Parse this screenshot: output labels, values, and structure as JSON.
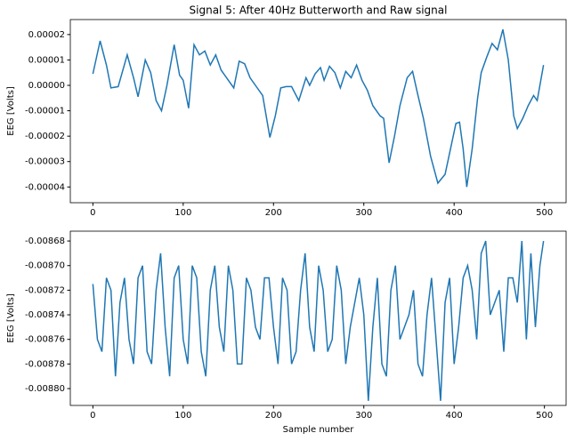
{
  "chart_data": [
    {
      "type": "line",
      "title": "Signal 5: After 40Hz Butterworth and Raw signal",
      "y_label": "EEG [Volts]",
      "color": "#1f77b4",
      "x": [
        0,
        8,
        15,
        20,
        28,
        38,
        45,
        50,
        58,
        64,
        70,
        76,
        82,
        90,
        96,
        100,
        106,
        112,
        118,
        124,
        130,
        136,
        142,
        150,
        156,
        162,
        168,
        174,
        180,
        188,
        196,
        202,
        208,
        214,
        220,
        228,
        236,
        240,
        246,
        252,
        256,
        262,
        268,
        274,
        280,
        286,
        292,
        298,
        304,
        310,
        318,
        322,
        328,
        334,
        340,
        348,
        354,
        360,
        366,
        374,
        382,
        390,
        396,
        402,
        406,
        410,
        414,
        420,
        426,
        430,
        436,
        442,
        448,
        454,
        460,
        466,
        470,
        476,
        482,
        488,
        492,
        496,
        499
      ],
      "values": [
        4.5e-06,
        1.75e-05,
        8e-06,
        -1e-06,
        -5e-07,
        1.2e-05,
        3e-06,
        -4.5e-06,
        1e-05,
        5e-06,
        -6e-06,
        -1e-05,
        0.0,
        1.6e-05,
        4e-06,
        2e-06,
        -9e-06,
        1.6e-05,
        1.2e-05,
        1.35e-05,
        8e-06,
        1.2e-05,
        6e-06,
        2e-06,
        -1e-06,
        9.5e-06,
        8.5e-06,
        3e-06,
        0.0,
        -4e-06,
        -2.05e-05,
        -1.2e-05,
        -1e-06,
        -5e-07,
        -5e-07,
        -6e-06,
        3e-06,
        0.0,
        4.5e-06,
        7e-06,
        2e-06,
        7.5e-06,
        5e-06,
        -1e-06,
        5.5e-06,
        3e-06,
        8e-06,
        2e-06,
        -2e-06,
        -8e-06,
        -1.2e-05,
        -1.3e-05,
        -3.05e-05,
        -2e-05,
        -8e-06,
        3e-06,
        5.5e-06,
        -4e-06,
        -1.3e-05,
        -2.8e-05,
        -3.85e-05,
        -3.5e-05,
        -2.5e-05,
        -1.5e-05,
        -1.45e-05,
        -2.5e-05,
        -4e-05,
        -2.5e-05,
        -5e-06,
        5e-06,
        1.1e-05,
        1.65e-05,
        1.4e-05,
        2.2e-05,
        1e-05,
        -1.2e-05,
        -1.7e-05,
        -1.3e-05,
        -8e-06,
        -4e-06,
        -6e-06,
        2e-06,
        8e-06
      ],
      "xlim": [
        -25,
        524
      ],
      "ylim": [
        -4.62e-05,
        2.59e-05
      ],
      "xticks": [
        0,
        100,
        200,
        300,
        400,
        500
      ],
      "yticks": [
        {
          "value": 2e-05,
          "label": "0.00002"
        },
        {
          "value": 1e-05,
          "label": "0.00001"
        },
        {
          "value": 0,
          "label": "0.00000"
        },
        {
          "value": -1e-05,
          "label": "-0.00001"
        },
        {
          "value": -2e-05,
          "label": "-0.00002"
        },
        {
          "value": -3e-05,
          "label": "-0.00003"
        },
        {
          "value": -4e-05,
          "label": "-0.00004"
        }
      ]
    },
    {
      "type": "line",
      "x_label": "Sample number",
      "y_label": "EEG [Volts]",
      "color": "#1f77b4",
      "x": [
        0,
        5,
        10,
        15,
        20,
        25,
        30,
        35,
        40,
        45,
        50,
        55,
        60,
        65,
        70,
        75,
        80,
        85,
        90,
        95,
        100,
        105,
        110,
        115,
        120,
        125,
        130,
        135,
        140,
        145,
        150,
        155,
        160,
        165,
        170,
        175,
        180,
        185,
        190,
        195,
        200,
        205,
        210,
        215,
        220,
        225,
        230,
        235,
        240,
        245,
        250,
        255,
        260,
        265,
        270,
        275,
        280,
        285,
        290,
        295,
        300,
        305,
        310,
        315,
        320,
        325,
        330,
        335,
        340,
        345,
        350,
        355,
        360,
        365,
        370,
        375,
        380,
        385,
        390,
        395,
        400,
        405,
        410,
        415,
        420,
        425,
        430,
        435,
        440,
        445,
        450,
        455,
        460,
        465,
        470,
        475,
        480,
        485,
        490,
        495,
        499
      ],
      "values": [
        -0.008715,
        -0.00876,
        -0.00877,
        -0.00871,
        -0.00872,
        -0.00879,
        -0.00873,
        -0.00871,
        -0.00876,
        -0.00878,
        -0.00871,
        -0.0087,
        -0.00877,
        -0.00878,
        -0.00872,
        -0.00869,
        -0.00875,
        -0.00879,
        -0.00871,
        -0.0087,
        -0.00876,
        -0.00878,
        -0.0087,
        -0.00871,
        -0.00877,
        -0.00879,
        -0.00872,
        -0.0087,
        -0.00875,
        -0.00877,
        -0.0087,
        -0.00872,
        -0.00878,
        -0.00878,
        -0.00871,
        -0.00872,
        -0.00875,
        -0.00876,
        -0.00871,
        -0.00871,
        -0.00875,
        -0.00878,
        -0.00871,
        -0.00872,
        -0.00878,
        -0.00877,
        -0.00872,
        -0.00869,
        -0.00875,
        -0.00877,
        -0.0087,
        -0.00872,
        -0.00877,
        -0.00876,
        -0.0087,
        -0.00872,
        -0.00878,
        -0.00875,
        -0.00873,
        -0.00871,
        -0.00874,
        -0.00881,
        -0.00875,
        -0.00871,
        -0.00878,
        -0.00879,
        -0.00872,
        -0.0087,
        -0.00876,
        -0.00875,
        -0.00874,
        -0.00872,
        -0.00878,
        -0.00879,
        -0.00874,
        -0.00871,
        -0.00876,
        -0.00881,
        -0.00873,
        -0.00871,
        -0.00878,
        -0.00875,
        -0.00871,
        -0.0087,
        -0.00872,
        -0.00876,
        -0.00869,
        -0.00868,
        -0.00874,
        -0.00873,
        -0.00872,
        -0.00877,
        -0.00871,
        -0.00871,
        -0.00873,
        -0.00868,
        -0.00876,
        -0.00869,
        -0.00875,
        -0.0087,
        -0.00868
      ],
      "xlim": [
        -25,
        524
      ],
      "ylim": [
        -0.0088137,
        -0.008672
      ],
      "xticks": [
        0,
        100,
        200,
        300,
        400,
        500
      ],
      "yticks": [
        {
          "value": -0.00868,
          "label": "-0.00868"
        },
        {
          "value": -0.0087,
          "label": "-0.00870"
        },
        {
          "value": -0.00872,
          "label": "-0.00872"
        },
        {
          "value": -0.00874,
          "label": "-0.00874"
        },
        {
          "value": -0.00876,
          "label": "-0.00876"
        },
        {
          "value": -0.00878,
          "label": "-0.00878"
        },
        {
          "value": -0.0088,
          "label": "-0.00880"
        }
      ]
    }
  ]
}
